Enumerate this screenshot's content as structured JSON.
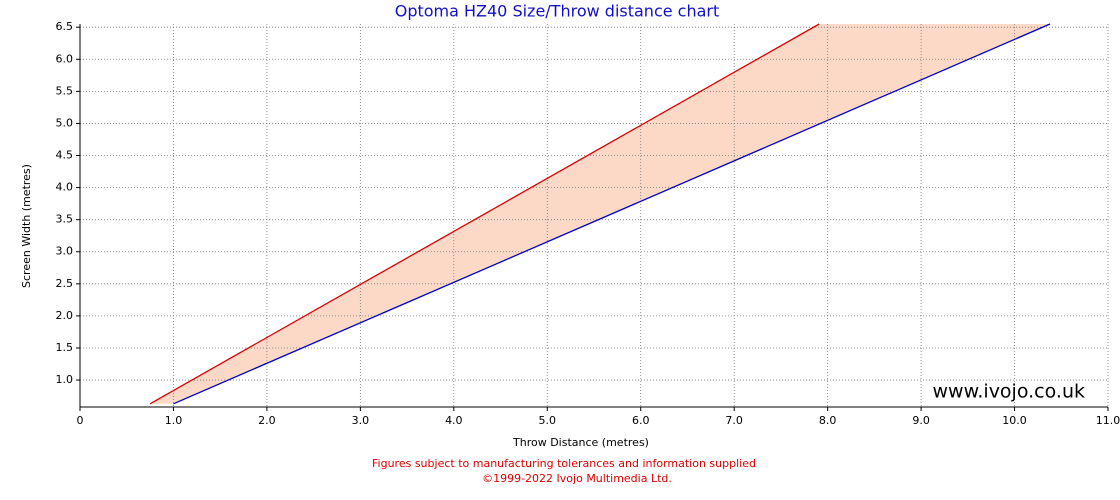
{
  "chart_data": {
    "type": "range-area",
    "title": "Optoma HZ40 Size/Throw distance chart",
    "x_label": "Throw Distance (metres)",
    "y_label": "Screen Width (metres)",
    "watermark": "www.ivojo.co.uk",
    "notes": [
      "Figures subject to manufacturing tolerances and information supplied",
      "©1999-2022 Ivojo Multimedia Ltd."
    ],
    "title_color": "#1010cc",
    "notes_color": "#dd0000",
    "fill_color": "#fcd9c6",
    "grid": true,
    "xlim": [
      0,
      11
    ],
    "xticks": [
      0,
      {
        "value": 1,
        "label": "1.0"
      },
      {
        "value": 2,
        "label": "2.0"
      },
      {
        "value": 3,
        "label": "3.0"
      },
      {
        "value": 4,
        "label": "4.0"
      },
      {
        "value": 5,
        "label": "5.0"
      },
      {
        "value": 6,
        "label": "6.0"
      },
      {
        "value": 7,
        "label": "7.0"
      },
      {
        "value": 8,
        "label": "8.0"
      },
      {
        "value": 9,
        "label": "9.0"
      },
      {
        "value": 10,
        "label": "10.0"
      },
      {
        "value": 11,
        "label": "11.0"
      }
    ],
    "ylim": [
      0.58,
      6.55
    ],
    "yticks": [
      {
        "value": 1,
        "label": "1.0"
      },
      1.5,
      {
        "value": 2,
        "label": "2.0"
      },
      2.5,
      {
        "value": 3,
        "label": "3.0"
      },
      3.5,
      {
        "value": 4,
        "label": "4.0"
      },
      4.5,
      {
        "value": 5,
        "label": "5.0"
      },
      5.5,
      {
        "value": 6,
        "label": "6.0"
      },
      6.5
    ],
    "series": [
      {
        "color": "#dd0000",
        "x": [
          0.75,
          7.91
        ],
        "values": [
          0.63,
          6.55
        ]
      },
      {
        "color": "#0000cc",
        "x": [
          1.0,
          10.38
        ],
        "values": [
          0.63,
          6.55
        ]
      }
    ]
  }
}
